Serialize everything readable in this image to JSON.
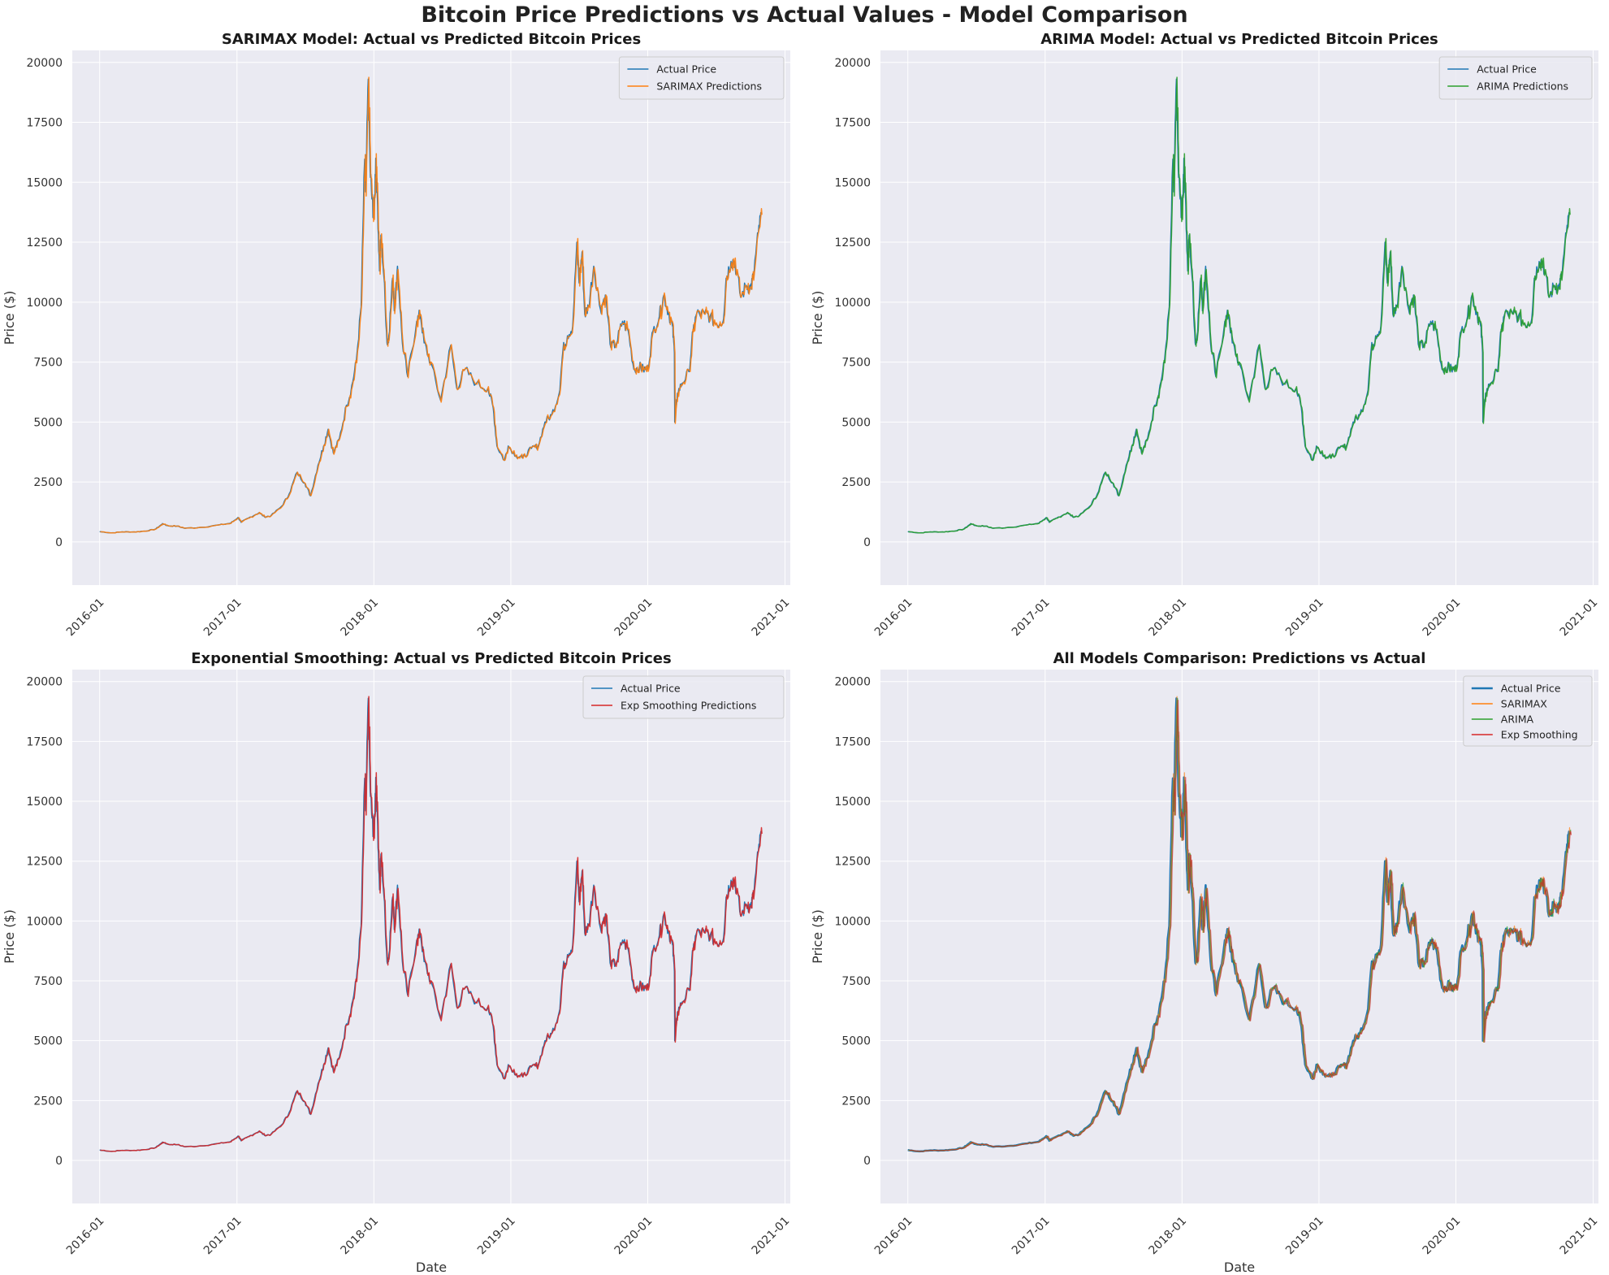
{
  "figure": {
    "title": "Bitcoin Price Predictions vs Actual Values - Model Comparison"
  },
  "colors": {
    "actual": "#1f77b4",
    "sarimax": "#ff7f0e",
    "arima": "#2ca02c",
    "exp": "#d62728",
    "plot_bg": "#eaeaf2",
    "grid": "#ffffff"
  },
  "chart_data": [
    {
      "type": "line",
      "title": "SARIMAX Model: Actual vs Predicted Bitcoin Prices",
      "xlabel": "",
      "ylabel": "Price ($)",
      "xlim": [
        "2015-10-20",
        "2021-01-15"
      ],
      "ylim": [
        -1800,
        20500
      ],
      "x_ticks": [
        "2016-01",
        "2017-01",
        "2018-01",
        "2019-01",
        "2020-01",
        "2021-01"
      ],
      "y_ticks": [
        0,
        2500,
        5000,
        7500,
        10000,
        12500,
        15000,
        17500,
        20000
      ],
      "grid": true,
      "legend_position": "top-right",
      "series": [
        {
          "name": "Actual Price",
          "color": "#1f77b4",
          "width": 1.5,
          "alpha": 1
        },
        {
          "name": "SARIMAX Predictions",
          "color": "#ff7f0e",
          "width": 1.5,
          "alpha": 0.9
        }
      ]
    },
    {
      "type": "line",
      "title": "ARIMA Model: Actual vs Predicted Bitcoin Prices",
      "xlabel": "",
      "ylabel": "Price ($)",
      "xlim": [
        "2015-10-20",
        "2021-01-15"
      ],
      "ylim": [
        -1800,
        20500
      ],
      "x_ticks": [
        "2016-01",
        "2017-01",
        "2018-01",
        "2019-01",
        "2020-01",
        "2021-01"
      ],
      "y_ticks": [
        0,
        2500,
        5000,
        7500,
        10000,
        12500,
        15000,
        17500,
        20000
      ],
      "grid": true,
      "legend_position": "top-right",
      "series": [
        {
          "name": "Actual Price",
          "color": "#1f77b4",
          "width": 1.5,
          "alpha": 1
        },
        {
          "name": "ARIMA Predictions",
          "color": "#2ca02c",
          "width": 1.5,
          "alpha": 0.9
        }
      ]
    },
    {
      "type": "line",
      "title": "Exponential Smoothing: Actual vs Predicted Bitcoin Prices",
      "xlabel": "Date",
      "ylabel": "Price ($)",
      "xlim": [
        "2015-10-20",
        "2021-01-15"
      ],
      "ylim": [
        -1800,
        20500
      ],
      "x_ticks": [
        "2016-01",
        "2017-01",
        "2018-01",
        "2019-01",
        "2020-01",
        "2021-01"
      ],
      "y_ticks": [
        0,
        2500,
        5000,
        7500,
        10000,
        12500,
        15000,
        17500,
        20000
      ],
      "grid": true,
      "legend_position": "top-right",
      "series": [
        {
          "name": "Actual Price",
          "color": "#1f77b4",
          "width": 1.5,
          "alpha": 1
        },
        {
          "name": "Exp Smoothing Predictions",
          "color": "#d62728",
          "width": 1.5,
          "alpha": 0.9
        }
      ]
    },
    {
      "type": "line",
      "title": "All Models Comparison: Predictions vs Actual",
      "xlabel": "Date",
      "ylabel": "Price ($)",
      "xlim": [
        "2015-10-20",
        "2021-01-15"
      ],
      "ylim": [
        -1800,
        20500
      ],
      "x_ticks": [
        "2016-01",
        "2017-01",
        "2018-01",
        "2019-01",
        "2020-01",
        "2021-01"
      ],
      "y_ticks": [
        0,
        2500,
        5000,
        7500,
        10000,
        12500,
        15000,
        17500,
        20000
      ],
      "grid": true,
      "legend_position": "top-right",
      "series": [
        {
          "name": "Actual Price",
          "color": "#1f77b4",
          "width": 2.5,
          "alpha": 1
        },
        {
          "name": "SARIMAX",
          "color": "#ff7f0e",
          "width": 1.2,
          "alpha": 0.7
        },
        {
          "name": "ARIMA",
          "color": "#2ca02c",
          "width": 1.2,
          "alpha": 0.7
        },
        {
          "name": "Exp Smoothing",
          "color": "#d62728",
          "width": 1.2,
          "alpha": 0.7
        }
      ]
    }
  ],
  "price_series": {
    "description_of_points": "approximate Bitcoin daily close values read from the chart, shared by all four panels (predictions overlap the actual line)",
    "dates": [
      "2016-01-01",
      "2016-02-01",
      "2016-03-01",
      "2016-04-01",
      "2016-05-01",
      "2016-05-28",
      "2016-06-12",
      "2016-06-18",
      "2016-07-01",
      "2016-07-25",
      "2016-08-15",
      "2016-10-01",
      "2016-11-15",
      "2016-12-15",
      "2017-01-04",
      "2017-01-12",
      "2017-02-01",
      "2017-03-01",
      "2017-03-15",
      "2017-04-01",
      "2017-05-01",
      "2017-05-20",
      "2017-06-10",
      "2017-07-01",
      "2017-07-16",
      "2017-08-05",
      "2017-08-20",
      "2017-09-01",
      "2017-09-15",
      "2017-10-01",
      "2017-10-20",
      "2017-11-01",
      "2017-11-15",
      "2017-11-28",
      "2017-12-07",
      "2017-12-10",
      "2017-12-17",
      "2017-12-22",
      "2017-12-27",
      "2018-01-01",
      "2018-01-06",
      "2018-01-10",
      "2018-01-16",
      "2018-01-20",
      "2018-01-28",
      "2018-02-05",
      "2018-02-10",
      "2018-02-20",
      "2018-02-25",
      "2018-03-05",
      "2018-03-18",
      "2018-04-01",
      "2018-04-25",
      "2018-05-05",
      "2018-05-15",
      "2018-06-01",
      "2018-06-28",
      "2018-07-25",
      "2018-08-10",
      "2018-09-01",
      "2018-10-01",
      "2018-11-01",
      "2018-11-15",
      "2018-11-25",
      "2018-12-15",
      "2018-12-25",
      "2019-01-15",
      "2019-02-01",
      "2019-02-25",
      "2019-03-15",
      "2019-04-02",
      "2019-04-20",
      "2019-05-10",
      "2019-05-20",
      "2019-06-01",
      "2019-06-15",
      "2019-06-26",
      "2019-07-02",
      "2019-07-10",
      "2019-07-17",
      "2019-07-27",
      "2019-08-10",
      "2019-08-28",
      "2019-09-10",
      "2019-09-25",
      "2019-10-10",
      "2019-10-26",
      "2019-11-10",
      "2019-11-25",
      "2019-12-10",
      "2019-12-20",
      "2020-01-01",
      "2020-01-15",
      "2020-02-01",
      "2020-02-13",
      "2020-02-25",
      "2020-03-07",
      "2020-03-12",
      "2020-03-13",
      "2020-03-20",
      "2020-04-01",
      "2020-04-20",
      "2020-05-01",
      "2020-05-10",
      "2020-06-01",
      "2020-06-15",
      "2020-07-01",
      "2020-07-20",
      "2020-07-28",
      "2020-08-10",
      "2020-08-20",
      "2020-09-05",
      "2020-09-20",
      "2020-10-01",
      "2020-10-08",
      "2020-10-22",
      "2020-10-30"
    ],
    "values": [
      430,
      375,
      420,
      415,
      450,
      530,
      700,
      760,
      670,
      660,
      570,
      610,
      710,
      780,
      1020,
      820,
      1000,
      1220,
      1050,
      1080,
      1500,
      2000,
      2900,
      2450,
      1920,
      3200,
      4000,
      4700,
      3700,
      4300,
      5700,
      6300,
      7500,
      9800,
      15800,
      14600,
      19300,
      15500,
      14300,
      13500,
      16000,
      14500,
      11300,
      12800,
      11000,
      8300,
      8600,
      11000,
      9700,
      11500,
      8300,
      6900,
      9200,
      9500,
      8300,
      7500,
      5900,
      8200,
      6400,
      7200,
      6600,
      6400,
      5600,
      4000,
      3400,
      4000,
      3600,
      3500,
      3900,
      4000,
      5000,
      5300,
      6200,
      8000,
      8600,
      9000,
      12500,
      10800,
      12100,
      9500,
      9800,
      11500,
      9700,
      10300,
      8100,
      8300,
      9200,
      8800,
      7200,
      7300,
      7200,
      7200,
      8800,
      9400,
      10300,
      9600,
      9000,
      7900,
      5000,
      6200,
      6600,
      7100,
      8800,
      9500,
      9500,
      9400,
      9100,
      9200,
      11000,
      11700,
      11700,
      10200,
      10700,
      10600,
      11000,
      12900,
      13700
    ]
  }
}
